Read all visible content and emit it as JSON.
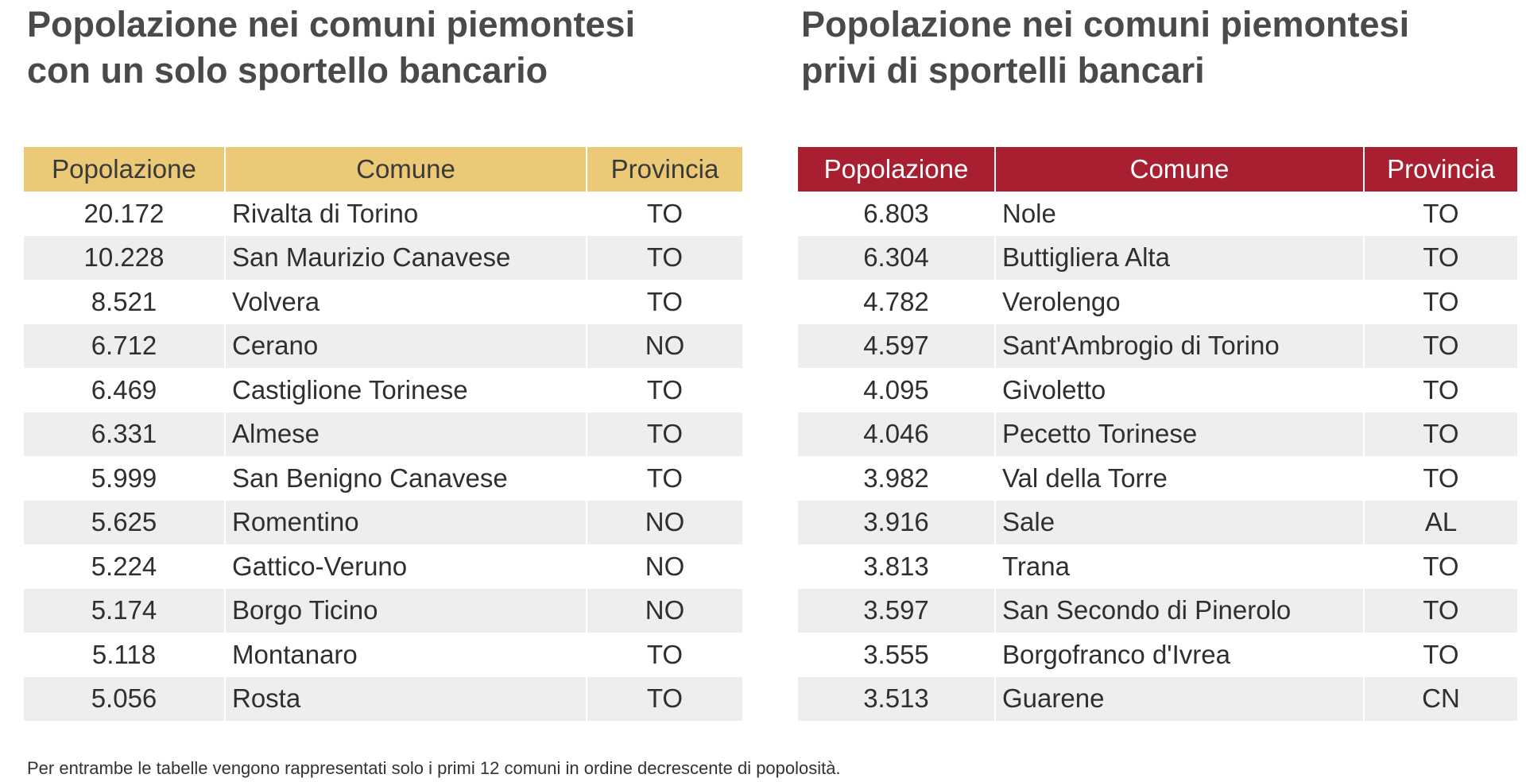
{
  "footnote": "Per entrambe le tabelle vengono rappresentati solo i primi 12 comuni in ordine decrescente di popolosità.",
  "colors": {
    "left_header": "#ebc977",
    "right_header": "#a81f31",
    "stripe": "#eeeeee"
  },
  "chart_data": [
    {
      "type": "table",
      "title": "Popolazione nei comuni piemontesi\ncon un solo sportello bancario",
      "columns": [
        "Popolazione",
        "Comune",
        "Provincia"
      ],
      "rows": [
        [
          "20.172",
          "Rivalta di Torino",
          "TO"
        ],
        [
          "10.228",
          "San Maurizio Canavese",
          "TO"
        ],
        [
          "8.521",
          "Volvera",
          "TO"
        ],
        [
          "6.712",
          "Cerano",
          "NO"
        ],
        [
          "6.469",
          "Castiglione Torinese",
          "TO"
        ],
        [
          "6.331",
          "Almese",
          "TO"
        ],
        [
          "5.999",
          "San Benigno Canavese",
          "TO"
        ],
        [
          "5.625",
          "Romentino",
          "NO"
        ],
        [
          "5.224",
          "Gattico-Veruno",
          "NO"
        ],
        [
          "5.174",
          "Borgo Ticino",
          "NO"
        ],
        [
          "5.118",
          "Montanaro",
          "TO"
        ],
        [
          "5.056",
          "Rosta",
          "TO"
        ]
      ]
    },
    {
      "type": "table",
      "title": "Popolazione nei comuni piemontesi\nprivi di sportelli bancari",
      "columns": [
        "Popolazione",
        "Comune",
        "Provincia"
      ],
      "rows": [
        [
          "6.803",
          "Nole",
          "TO"
        ],
        [
          "6.304",
          "Buttigliera Alta",
          "TO"
        ],
        [
          "4.782",
          "Verolengo",
          "TO"
        ],
        [
          "4.597",
          "Sant'Ambrogio di Torino",
          "TO"
        ],
        [
          "4.095",
          "Givoletto",
          "TO"
        ],
        [
          "4.046",
          "Pecetto Torinese",
          "TO"
        ],
        [
          "3.982",
          "Val della Torre",
          "TO"
        ],
        [
          "3.916",
          "Sale",
          "AL"
        ],
        [
          "3.813",
          "Trana",
          "TO"
        ],
        [
          "3.597",
          "San Secondo di Pinerolo",
          "TO"
        ],
        [
          "3.555",
          "Borgofranco d'Ivrea",
          "TO"
        ],
        [
          "3.513",
          "Guarene",
          "CN"
        ]
      ]
    }
  ]
}
